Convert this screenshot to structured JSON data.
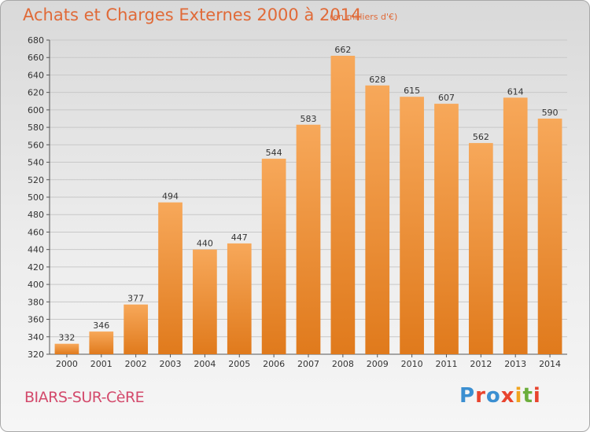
{
  "chart": {
    "title": "Achats et Charges Externes 2000 à 2014",
    "unit_note": "(en milliers d'€)",
    "place": "BIARS-SUR-CèRE",
    "logo_text": "Proxiti"
  },
  "colors": {
    "title": "#e06a38",
    "place": "#d3496b",
    "bar_top": "#f7a85a",
    "bar_bottom": "#e07a1c",
    "logo": [
      "#3b8fd1",
      "#e8442e",
      "#3b8fd1",
      "#e8442e",
      "#f1a41f",
      "#6cae3c",
      "#e8442e"
    ]
  },
  "chart_data": {
    "type": "bar",
    "title": "Achats et Charges Externes 2000 à 2014",
    "subtitle": "(en milliers d'€)",
    "categories": [
      "2000",
      "2001",
      "2002",
      "2003",
      "2004",
      "2005",
      "2006",
      "2007",
      "2008",
      "2009",
      "2010",
      "2011",
      "2012",
      "2013",
      "2014"
    ],
    "values": [
      332,
      346,
      377,
      494,
      440,
      447,
      544,
      583,
      662,
      628,
      615,
      607,
      562,
      614,
      590
    ],
    "ylim": [
      320,
      680
    ],
    "yticks": [
      320,
      340,
      360,
      380,
      400,
      420,
      440,
      460,
      480,
      500,
      520,
      540,
      560,
      580,
      600,
      620,
      640,
      660,
      680
    ],
    "grid": true,
    "legend": "none",
    "xlabel": "",
    "ylabel": ""
  }
}
